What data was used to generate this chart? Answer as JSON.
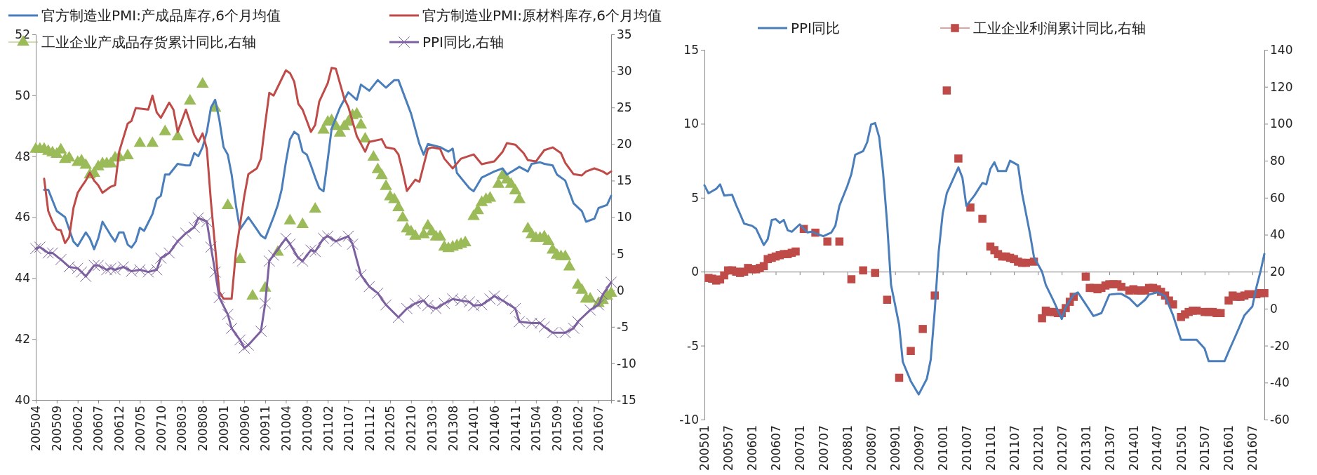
{
  "chart_data": [
    {
      "type": "line",
      "legend": "top",
      "xlim": [
        "2005-04",
        "2016-10"
      ],
      "xticks": [
        {
          "value": "2005-04",
          "label": "200504"
        },
        {
          "value": "2005-09",
          "label": "200509"
        },
        {
          "value": "2006-02",
          "label": "200602"
        },
        {
          "value": "2006-07",
          "label": "200607"
        },
        {
          "value": "2006-12",
          "label": "200612"
        },
        {
          "value": "2007-05",
          "label": "200705"
        },
        {
          "value": "2007-10",
          "label": "200710"
        },
        {
          "value": "2008-03",
          "label": "200803"
        },
        {
          "value": "2008-08",
          "label": "200808"
        },
        {
          "value": "2009-01",
          "label": "200901"
        },
        {
          "value": "2009-06",
          "label": "200906"
        },
        {
          "value": "2009-11",
          "label": "200911"
        },
        {
          "value": "2010-04",
          "label": "201004"
        },
        {
          "value": "2010-09",
          "label": "201009"
        },
        {
          "value": "2011-02",
          "label": "201102"
        },
        {
          "value": "2011-07",
          "label": "201107"
        },
        {
          "value": "2011-12",
          "label": "201112"
        },
        {
          "value": "2012-05",
          "label": "201205"
        },
        {
          "value": "2012-10",
          "label": "201210"
        },
        {
          "value": "2013-03",
          "label": "201303"
        },
        {
          "value": "2013-08",
          "label": "201308"
        },
        {
          "value": "2014-01",
          "label": "201401"
        },
        {
          "value": "2014-06",
          "label": "201406"
        },
        {
          "value": "2014-11",
          "label": "201411"
        },
        {
          "value": "2015-04",
          "label": "201504"
        },
        {
          "value": "2015-09",
          "label": "201509"
        },
        {
          "value": "2016-02",
          "label": "201602"
        },
        {
          "value": "2016-07",
          "label": "201607"
        }
      ],
      "ylim": [
        40,
        52
      ],
      "yticks": [
        40,
        42,
        44,
        46,
        48,
        50,
        52
      ],
      "y2lim": [
        -15,
        35
      ],
      "y2ticks": [
        -15,
        -10,
        -5,
        0,
        5,
        10,
        15,
        20,
        25,
        30,
        35
      ],
      "series": [
        {
          "name": "官方制造业PMI:产成品库存,6个月均值",
          "color": "#4a7ebb",
          "x": [
            "2005-06",
            "2005-07",
            "2005-09",
            "2005-11",
            "2005-12",
            "2006-01",
            "2006-02",
            "2006-04",
            "2006-05",
            "2006-06",
            "2006-07",
            "2006-08",
            "2006-10",
            "2006-11",
            "2006-12",
            "2007-01",
            "2007-02",
            "2007-03",
            "2007-04",
            "2007-05",
            "2007-06",
            "2007-08",
            "2007-09",
            "2007-10",
            "2007-11",
            "2007-12",
            "2008-02",
            "2008-04",
            "2008-05",
            "2008-06",
            "2008-07",
            "2008-08",
            "2008-09",
            "2008-10",
            "2008-11",
            "2008-12",
            "2009-01",
            "2009-02",
            "2009-03",
            "2009-04",
            "2009-05",
            "2009-07",
            "2009-09",
            "2009-10",
            "2009-11",
            "2010-01",
            "2010-02",
            "2010-03",
            "2010-04",
            "2010-05",
            "2010-06",
            "2010-07",
            "2010-08",
            "2010-09",
            "2010-10",
            "2010-11",
            "2010-12",
            "2011-01",
            "2011-02",
            "2011-03",
            "2011-05",
            "2011-07",
            "2011-09",
            "2011-10",
            "2011-12",
            "2012-02",
            "2012-04",
            "2012-06",
            "2012-07",
            "2012-10",
            "2012-12",
            "2013-01",
            "2013-02",
            "2013-05",
            "2013-07",
            "2013-08",
            "2013-09",
            "2013-12",
            "2014-01",
            "2014-03",
            "2014-06",
            "2014-08",
            "2014-09",
            "2014-12",
            "2015-02",
            "2015-03",
            "2015-05",
            "2015-06",
            "2015-08",
            "2015-09",
            "2015-11",
            "2016-01",
            "2016-03",
            "2016-04",
            "2016-06",
            "2016-07",
            "2016-09",
            "2016-10"
          ],
          "values": [
            46.9,
            46.9,
            46.2,
            46.0,
            45.6,
            45.2,
            45.05,
            45.5,
            45.3,
            44.95,
            45.3,
            45.85,
            45.4,
            45.2,
            45.5,
            45.5,
            45.1,
            45.0,
            45.2,
            45.65,
            45.55,
            46.1,
            46.6,
            46.7,
            47.4,
            47.4,
            47.75,
            47.7,
            47.7,
            48.1,
            48.0,
            48.3,
            48.8,
            49.6,
            49.85,
            49.2,
            48.3,
            48.05,
            47.4,
            46.4,
            45.6,
            46.0,
            45.6,
            45.4,
            45.3,
            46.0,
            46.4,
            46.9,
            47.8,
            48.55,
            48.8,
            48.7,
            48.15,
            48.05,
            47.7,
            47.3,
            46.95,
            46.85,
            47.9,
            48.9,
            49.6,
            50.1,
            49.85,
            50.35,
            50.15,
            50.5,
            50.25,
            50.5,
            50.5,
            49.4,
            48.4,
            48.05,
            48.4,
            48.3,
            48.15,
            48.25,
            47.45,
            46.95,
            46.85,
            47.3,
            47.5,
            47.6,
            47.4,
            47.65,
            47.5,
            47.75,
            47.8,
            47.75,
            47.7,
            47.4,
            47.2,
            46.45,
            46.2,
            45.85,
            45.95,
            46.3,
            46.4,
            46.7
          ]
        },
        {
          "name": "官方制造业PMI:原材料库存,6个月均值",
          "color": "#be4b48",
          "x": [
            "2005-06",
            "2005-07",
            "2005-08",
            "2005-09",
            "2005-10",
            "2005-11",
            "2005-12",
            "2006-01",
            "2006-02",
            "2006-03",
            "2006-04",
            "2006-05",
            "2006-06",
            "2006-07",
            "2006-08",
            "2006-10",
            "2006-11",
            "2006-12",
            "2007-02",
            "2007-03",
            "2007-04",
            "2007-07",
            "2007-08",
            "2007-09",
            "2007-10",
            "2007-12",
            "2008-01",
            "2008-02",
            "2008-04",
            "2008-06",
            "2008-07",
            "2008-08",
            "2008-09",
            "2008-10",
            "2008-12",
            "2009-01",
            "2009-03",
            "2009-04",
            "2009-06",
            "2009-07",
            "2009-09",
            "2009-10",
            "2009-11",
            "2009-12",
            "2010-01",
            "2010-04",
            "2010-05",
            "2010-06",
            "2010-07",
            "2010-08",
            "2010-09",
            "2010-10",
            "2010-11",
            "2010-12",
            "2011-02",
            "2011-03",
            "2011-04",
            "2011-06",
            "2011-07",
            "2011-09",
            "2011-11",
            "2011-12",
            "2012-03",
            "2012-04",
            "2012-06",
            "2012-07",
            "2012-08",
            "2012-09",
            "2012-11",
            "2012-12",
            "2013-02",
            "2013-03",
            "2013-05",
            "2013-06",
            "2013-08",
            "2013-10",
            "2014-01",
            "2014-03",
            "2014-06",
            "2014-08",
            "2014-09",
            "2014-11",
            "2015-01",
            "2015-02",
            "2015-04",
            "2015-06",
            "2015-08",
            "2015-10",
            "2015-11",
            "2016-01",
            "2016-03",
            "2016-04",
            "2016-06",
            "2016-08",
            "2016-09",
            "2016-10"
          ],
          "values": [
            47.26,
            46.2,
            45.85,
            45.6,
            45.57,
            45.15,
            45.35,
            46.3,
            46.8,
            47.0,
            47.2,
            47.46,
            47.2,
            47.05,
            46.8,
            47.0,
            47.05,
            48.15,
            49.07,
            49.16,
            49.58,
            49.53,
            49.99,
            49.44,
            49.26,
            49.76,
            49.53,
            48.8,
            49.53,
            48.7,
            48.47,
            48.75,
            48.24,
            46.5,
            43.55,
            43.32,
            43.32,
            44.84,
            46.68,
            47.41,
            47.6,
            47.92,
            49.07,
            50.08,
            49.99,
            50.82,
            50.73,
            50.45,
            49.72,
            49.53,
            49.16,
            48.8,
            49.03,
            49.8,
            50.4,
            50.9,
            50.87,
            49.9,
            49.62,
            48.66,
            48.15,
            48.47,
            48.56,
            48.29,
            48.24,
            48.06,
            47.5,
            46.86,
            47.23,
            47.16,
            48.24,
            48.29,
            48.24,
            47.92,
            47.6,
            47.92,
            48.06,
            47.74,
            47.83,
            48.15,
            48.43,
            48.38,
            48.1,
            47.87,
            47.83,
            48.2,
            48.29,
            48.1,
            47.78,
            47.41,
            47.37,
            47.5,
            47.6,
            47.5,
            47.41,
            47.5
          ]
        },
        {
          "name": "工业企业产成品存货累计同比,右轴",
          "type": "scatter",
          "axis": "y2",
          "marker": "triangle",
          "color": "#9bbb59",
          "x": [
            "2005-04",
            "2005-05",
            "2005-06",
            "2005-07",
            "2005-08",
            "2005-09",
            "2005-10",
            "2005-11",
            "2005-12",
            "2006-02",
            "2006-03",
            "2006-04",
            "2006-05",
            "2006-06",
            "2006-07",
            "2006-08",
            "2006-09",
            "2006-10",
            "2006-11",
            "2006-12",
            "2007-02",
            "2007-05",
            "2007-08",
            "2007-11",
            "2008-02",
            "2008-05",
            "2008-08",
            "2008-11",
            "2009-02",
            "2009-05",
            "2009-08",
            "2009-11",
            "2010-02",
            "2010-05",
            "2010-08",
            "2010-11",
            "2011-01",
            "2011-02",
            "2011-03",
            "2011-04",
            "2011-05",
            "2011-06",
            "2011-07",
            "2011-08",
            "2011-09",
            "2011-10",
            "2011-11",
            "2012-01",
            "2012-02",
            "2012-03",
            "2012-04",
            "2012-05",
            "2012-06",
            "2012-07",
            "2012-08",
            "2012-09",
            "2012-10",
            "2012-11",
            "2013-01",
            "2013-02",
            "2013-03",
            "2013-04",
            "2013-05",
            "2013-06",
            "2013-07",
            "2013-08",
            "2013-09",
            "2013-10",
            "2013-11",
            "2014-01",
            "2014-02",
            "2014-03",
            "2014-04",
            "2014-05",
            "2014-07",
            "2014-08",
            "2014-09",
            "2014-10",
            "2014-11",
            "2014-12",
            "2015-02",
            "2015-03",
            "2015-04",
            "2015-05",
            "2015-06",
            "2015-07",
            "2015-08",
            "2015-09",
            "2015-10",
            "2015-11",
            "2015-12",
            "2016-02",
            "2016-03",
            "2016-04",
            "2016-05",
            "2016-07",
            "2016-08",
            "2016-09",
            "2016-10"
          ],
          "values": [
            19.3,
            19.3,
            19.3,
            19.0,
            18.8,
            18.6,
            19.2,
            17.9,
            18.1,
            17.5,
            17.7,
            17.1,
            15.8,
            16.0,
            16.9,
            17.3,
            17.3,
            17.3,
            18.1,
            18.2,
            18.4,
            20.1,
            20.1,
            21.7,
            21.0,
            25.9,
            28.2,
            24.9,
            11.6,
            4.2,
            -0.8,
            0.3,
            5.2,
            9.5,
            9.0,
            11.1,
            21.9,
            23.0,
            23.2,
            22.4,
            21.5,
            22.4,
            23.0,
            23.9,
            24.1,
            22.6,
            20.7,
            18.2,
            16.5,
            15.7,
            14.2,
            12.8,
            12.4,
            11.3,
            9.9,
            8.4,
            8.0,
            7.4,
            7.6,
            8.8,
            8.0,
            7.3,
            7.3,
            5.9,
            5.7,
            5.9,
            6.1,
            6.3,
            6.5,
            10.1,
            10.9,
            12.0,
            12.4,
            12.6,
            14.5,
            15.7,
            15.1,
            14.5,
            13.6,
            12.4,
            8.4,
            7.6,
            7.1,
            7.1,
            7.3,
            6.7,
            5.5,
            4.8,
            4.6,
            4.6,
            3.2,
            0.7,
            0.0,
            -1.2,
            -1.2,
            -1.8,
            -1.4,
            -0.8,
            -0.4
          ]
        },
        {
          "name": "PPI同比,右轴",
          "axis": "y2",
          "marker": "cross",
          "color": "#7d60a0",
          "x": [
            "2005-04",
            "2005-05",
            "2005-07",
            "2005-08",
            "2005-10",
            "2005-12",
            "2006-02",
            "2006-03",
            "2006-04",
            "2006-06",
            "2006-07",
            "2006-09",
            "2006-10",
            "2006-11",
            "2007-01",
            "2007-03",
            "2007-05",
            "2007-07",
            "2007-09",
            "2007-10",
            "2007-12",
            "2008-02",
            "2008-04",
            "2008-06",
            "2008-07",
            "2008-09",
            "2008-10",
            "2008-11",
            "2008-12",
            "2009-02",
            "2009-03",
            "2009-05",
            "2009-06",
            "2009-07",
            "2009-10",
            "2009-11",
            "2009-12",
            "2010-01",
            "2010-04",
            "2010-05",
            "2010-07",
            "2010-08",
            "2010-10",
            "2010-11",
            "2011-01",
            "2011-02",
            "2011-04",
            "2011-07",
            "2011-08",
            "2011-10",
            "2011-12",
            "2012-02",
            "2012-04",
            "2012-07",
            "2012-09",
            "2012-11",
            "2013-01",
            "2013-02",
            "2013-04",
            "2013-06",
            "2013-08",
            "2013-10",
            "2013-12",
            "2014-01",
            "2014-03",
            "2014-05",
            "2014-06",
            "2014-08",
            "2014-11",
            "2014-12",
            "2015-03",
            "2015-05",
            "2015-06",
            "2015-08",
            "2015-11",
            "2016-01",
            "2016-02",
            "2016-05",
            "2016-07",
            "2016-08",
            "2016-10"
          ],
          "values": [
            5.7,
            5.9,
            5.1,
            5.1,
            4.2,
            3.2,
            3.0,
            2.5,
            1.9,
            3.4,
            3.4,
            2.8,
            3.0,
            2.8,
            3.2,
            2.6,
            2.8,
            2.5,
            2.8,
            4.4,
            5.1,
            6.7,
            7.8,
            8.6,
            9.9,
            9.4,
            5.9,
            2.5,
            -1.0,
            -3.3,
            -5.2,
            -6.8,
            -7.9,
            -7.5,
            -5.6,
            -1.8,
            4.0,
            4.8,
            7.1,
            6.3,
            4.4,
            4.0,
            5.5,
            5.3,
            7.1,
            7.4,
            6.7,
            7.4,
            6.3,
            2.1,
            0.5,
            -0.4,
            -2.0,
            -3.7,
            -2.5,
            -1.8,
            -1.4,
            -2.1,
            -2.5,
            -1.8,
            -1.2,
            -1.4,
            -1.6,
            -2.1,
            -2.0,
            -1.2,
            -0.8,
            -1.4,
            -2.5,
            -4.3,
            -4.5,
            -4.5,
            -5.0,
            -5.8,
            -5.8,
            -5.2,
            -4.3,
            -2.7,
            -2.0,
            -0.6,
            1.1
          ]
        }
      ]
    },
    {
      "type": "line",
      "legend": "top",
      "xlim": [
        "2005-01",
        "2016-10"
      ],
      "xticks": [
        {
          "value": "2005-01",
          "label": "200501"
        },
        {
          "value": "2005-07",
          "label": "200507"
        },
        {
          "value": "2006-01",
          "label": "200601"
        },
        {
          "value": "2006-07",
          "label": "200607"
        },
        {
          "value": "2007-01",
          "label": "200701"
        },
        {
          "value": "2007-07",
          "label": "200707"
        },
        {
          "value": "2008-01",
          "label": "200801"
        },
        {
          "value": "2008-07",
          "label": "200807"
        },
        {
          "value": "2009-01",
          "label": "200901"
        },
        {
          "value": "2009-07",
          "label": "200907"
        },
        {
          "value": "2010-01",
          "label": "201001"
        },
        {
          "value": "2010-07",
          "label": "201007"
        },
        {
          "value": "2011-01",
          "label": "201101"
        },
        {
          "value": "2011-07",
          "label": "201107"
        },
        {
          "value": "2012-01",
          "label": "201201"
        },
        {
          "value": "2012-07",
          "label": "201207"
        },
        {
          "value": "2013-01",
          "label": "201301"
        },
        {
          "value": "2013-07",
          "label": "201307"
        },
        {
          "value": "2014-01",
          "label": "201401"
        },
        {
          "value": "2014-07",
          "label": "201407"
        },
        {
          "value": "2015-01",
          "label": "201501"
        },
        {
          "value": "2015-07",
          "label": "201507"
        },
        {
          "value": "2016-01",
          "label": "201601"
        },
        {
          "value": "2016-07",
          "label": "201607"
        }
      ],
      "ylim": [
        -10,
        15
      ],
      "yticks": [
        -10,
        -5,
        0,
        5,
        10,
        15
      ],
      "y2lim": [
        -60,
        140
      ],
      "y2ticks": [
        -60,
        -40,
        -20,
        0,
        20,
        40,
        60,
        80,
        100,
        120,
        140
      ],
      "series": [
        {
          "name": "PPI同比",
          "color": "#4a7ebb",
          "x": [
            "2005-01",
            "2005-02",
            "2005-04",
            "2005-05",
            "2005-06",
            "2005-08",
            "2005-09",
            "2005-10",
            "2005-11",
            "2006-01",
            "2006-02",
            "2006-04",
            "2006-05",
            "2006-06",
            "2006-07",
            "2006-08",
            "2006-09",
            "2006-10",
            "2006-11",
            "2007-01",
            "2007-03",
            "2007-04",
            "2007-07",
            "2007-09",
            "2007-10",
            "2007-11",
            "2008-01",
            "2008-02",
            "2008-03",
            "2008-05",
            "2008-06",
            "2008-07",
            "2008-08",
            "2008-09",
            "2008-10",
            "2008-11",
            "2008-12",
            "2009-02",
            "2009-03",
            "2009-05",
            "2009-07",
            "2009-09",
            "2009-10",
            "2009-11",
            "2009-12",
            "2010-01",
            "2010-02",
            "2010-03",
            "2010-05",
            "2010-06",
            "2010-07",
            "2010-09",
            "2010-11",
            "2010-12",
            "2011-01",
            "2011-02",
            "2011-03",
            "2011-05",
            "2011-06",
            "2011-08",
            "2011-09",
            "2011-11",
            "2011-12",
            "2012-02",
            "2012-03",
            "2012-05",
            "2012-07",
            "2012-08",
            "2012-10",
            "2012-11",
            "2013-01",
            "2013-03",
            "2013-05",
            "2013-07",
            "2013-09",
            "2013-10",
            "2013-12",
            "2014-02",
            "2014-04",
            "2014-05",
            "2014-07",
            "2014-09",
            "2014-11",
            "2015-01",
            "2015-03",
            "2015-05",
            "2015-07",
            "2015-08",
            "2015-10",
            "2015-12",
            "2016-01",
            "2016-03",
            "2016-05",
            "2016-07",
            "2016-08",
            "2016-09",
            "2016-10"
          ],
          "values": [
            5.84,
            5.3,
            5.6,
            5.9,
            5.15,
            5.2,
            4.5,
            3.9,
            3.25,
            3.1,
            2.9,
            1.8,
            2.2,
            3.5,
            3.55,
            3.3,
            3.5,
            2.8,
            2.7,
            3.2,
            2.65,
            2.7,
            2.4,
            2.65,
            3.1,
            4.45,
            5.8,
            6.6,
            7.9,
            8.15,
            8.75,
            9.95,
            10.05,
            9.1,
            6.7,
            3.25,
            -0.9,
            -3.6,
            -6.1,
            -7.4,
            -8.3,
            -7.25,
            -5.95,
            -2.6,
            1.35,
            3.95,
            5.3,
            5.85,
            7.05,
            6.35,
            4.45,
            5.15,
            6.0,
            5.9,
            6.95,
            7.4,
            6.8,
            6.8,
            7.5,
            7.2,
            5.3,
            2.55,
            1.0,
            0.0,
            -0.9,
            -2.0,
            -3.2,
            -2.4,
            -1.55,
            -1.4,
            -2.2,
            -3.0,
            -2.8,
            -1.55,
            -1.5,
            -1.5,
            -1.8,
            -2.35,
            -1.9,
            -1.55,
            -1.4,
            -1.65,
            -2.95,
            -4.6,
            -4.6,
            -4.6,
            -5.2,
            -6.05,
            -6.05,
            -6.05,
            -5.4,
            -4.2,
            -2.95,
            -2.35,
            -1.05,
            0.0,
            1.2
          ]
        },
        {
          "name": "工业企业利润累计同比,右轴",
          "type": "scatter",
          "axis": "y2",
          "marker": "square",
          "color": "#be4b48",
          "x": [
            "2005-02",
            "2005-03",
            "2005-04",
            "2005-05",
            "2005-06",
            "2005-07",
            "2005-08",
            "2005-09",
            "2005-10",
            "2005-11",
            "2005-12",
            "2006-01",
            "2006-02",
            "2006-03",
            "2006-04",
            "2006-05",
            "2006-06",
            "2006-07",
            "2006-08",
            "2006-09",
            "2006-10",
            "2006-11",
            "2006-12",
            "2007-02",
            "2007-05",
            "2007-08",
            "2007-11",
            "2008-02",
            "2008-05",
            "2008-08",
            "2008-11",
            "2009-02",
            "2009-05",
            "2009-08",
            "2009-11",
            "2010-02",
            "2010-05",
            "2010-08",
            "2010-11",
            "2011-01",
            "2011-02",
            "2011-03",
            "2011-04",
            "2011-05",
            "2011-06",
            "2011-07",
            "2011-08",
            "2011-09",
            "2011-10",
            "2011-12",
            "2012-02",
            "2012-03",
            "2012-04",
            "2012-05",
            "2012-06",
            "2012-07",
            "2012-08",
            "2012-09",
            "2012-10",
            "2013-01",
            "2013-02",
            "2013-03",
            "2013-04",
            "2013-05",
            "2013-06",
            "2013-07",
            "2013-08",
            "2013-09",
            "2013-10",
            "2013-12",
            "2014-01",
            "2014-02",
            "2014-03",
            "2014-04",
            "2014-05",
            "2014-06",
            "2014-07",
            "2014-08",
            "2014-09",
            "2014-10",
            "2014-11",
            "2015-01",
            "2015-02",
            "2015-03",
            "2015-04",
            "2015-05",
            "2015-07",
            "2015-08",
            "2015-09",
            "2015-10",
            "2015-11",
            "2016-01",
            "2016-02",
            "2016-03",
            "2016-04",
            "2016-05",
            "2016-06",
            "2016-08",
            "2016-09",
            "2016-10"
          ],
          "values": [
            16.6,
            16.2,
            15.2,
            15.8,
            18.0,
            20.7,
            20.7,
            20.0,
            19.3,
            20.0,
            22.0,
            21.3,
            21.3,
            22.0,
            23.0,
            26.8,
            27.5,
            28.2,
            28.9,
            29.5,
            29.5,
            30.2,
            30.9,
            43.1,
            41.1,
            36.3,
            36.3,
            15.9,
            20.7,
            19.3,
            4.8,
            -37.4,
            -22.9,
            -11.0,
            7.1,
            118,
            81.2,
            54.7,
            48.6,
            33.6,
            31.6,
            29.5,
            28.2,
            28.2,
            27.5,
            26.8,
            25.4,
            24.8,
            24.8,
            25.4,
            -5.2,
            -1.1,
            -1.8,
            -1.8,
            -2.4,
            -2.4,
            0.3,
            3.7,
            6.4,
            17.3,
            11.2,
            11.2,
            10.5,
            11.2,
            12.5,
            13.2,
            13.2,
            13.2,
            11.8,
            9.8,
            10.5,
            9.8,
            9.8,
            9.8,
            11.2,
            11.2,
            10.5,
            9.1,
            7.1,
            4.4,
            2.3,
            -4.5,
            -3.1,
            -1.8,
            -1.1,
            -1.1,
            -1.8,
            -1.8,
            -1.8,
            -2.4,
            -2.4,
            4.4,
            7.1,
            6.4,
            6.4,
            7.1,
            7.8,
            7.8,
            8.4,
            8.4
          ]
        }
      ]
    }
  ]
}
